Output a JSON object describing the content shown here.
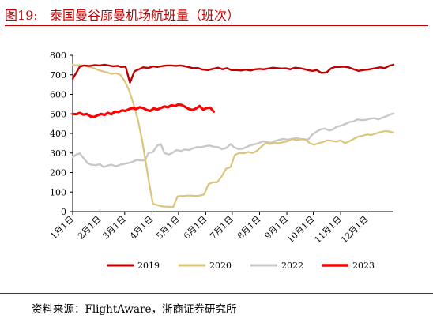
{
  "figure": {
    "label": "图19:",
    "title": "泰国曼谷廊曼机场航班量（班次）"
  },
  "source": "资料来源：FlightAware，浙商证券研究所",
  "colors": {
    "2019": "#c00000",
    "2020": "#dcc57a",
    "2022": "#c8c8c8",
    "2023": "#ff0000",
    "title": "#c00000"
  },
  "chart_data": {
    "type": "line",
    "title": "泰国曼谷廊曼机场航班量（班次）",
    "xlabel": "",
    "ylabel": "",
    "ylim": [
      0,
      800
    ],
    "yticks": [
      0,
      100,
      200,
      300,
      400,
      500,
      600,
      700,
      800
    ],
    "xlim": [
      1,
      365
    ],
    "x_unit": "day of year",
    "month_ticks": [
      {
        "label": "1月1日",
        "day": 1
      },
      {
        "label": "2月1日",
        "day": 32
      },
      {
        "label": "3月1日",
        "day": 60
      },
      {
        "label": "4月1日",
        "day": 91
      },
      {
        "label": "5月1日",
        "day": 121
      },
      {
        "label": "6月1日",
        "day": 152
      },
      {
        "label": "7月1日",
        "day": 182
      },
      {
        "label": "8月1日",
        "day": 213
      },
      {
        "label": "9月1日",
        "day": 244
      },
      {
        "label": "10月1日",
        "day": 274
      },
      {
        "label": "11月1日",
        "day": 305
      },
      {
        "label": "12月1日",
        "day": 335
      }
    ],
    "legend_position": "bottom",
    "series": [
      {
        "name": "2019",
        "x": [
          1,
          5,
          9,
          14,
          20,
          26,
          32,
          37,
          42,
          47,
          52,
          56,
          61,
          66,
          71,
          76,
          81,
          87,
          92,
          97,
          103,
          108,
          113,
          118,
          123,
          127,
          132,
          137,
          143,
          148,
          154,
          160,
          166,
          171,
          176,
          181,
          187,
          192,
          197,
          203,
          208,
          213,
          218,
          223,
          228,
          233,
          238,
          243,
          248,
          253,
          258,
          263,
          268,
          273,
          278,
          283,
          289,
          294,
          299,
          304,
          309,
          314,
          320,
          325,
          330,
          335,
          340,
          345,
          350,
          355,
          360,
          365
        ],
        "values": [
          680,
          710,
          742,
          748,
          745,
          750,
          748,
          752,
          748,
          744,
          746,
          740,
          742,
          660,
          718,
          728,
          738,
          735,
          743,
          740,
          745,
          748,
          748,
          746,
          748,
          745,
          740,
          734,
          735,
          727,
          724,
          730,
          736,
          728,
          734,
          724,
          724,
          722,
          726,
          722,
          728,
          730,
          728,
          732,
          736,
          734,
          732,
          733,
          728,
          736,
          734,
          730,
          724,
          720,
          724,
          710,
          712,
          732,
          740,
          740,
          742,
          738,
          728,
          720,
          724,
          726,
          730,
          734,
          738,
          734,
          746,
          752
        ]
      },
      {
        "name": "2020",
        "x": [
          1,
          5,
          10,
          15,
          20,
          25,
          30,
          35,
          40,
          45,
          50,
          55,
          60,
          65,
          70,
          75,
          80,
          84,
          88,
          92,
          95,
          98,
          101,
          105,
          110,
          115,
          120,
          123,
          127,
          131,
          135,
          140,
          145,
          150,
          155,
          160,
          165,
          170,
          175,
          180,
          185,
          190,
          195,
          200,
          205,
          210,
          215,
          220,
          225,
          230,
          235,
          240,
          245,
          250,
          255,
          260,
          265,
          270,
          275,
          280,
          285,
          290,
          295,
          300,
          305,
          310,
          315,
          320,
          325,
          330,
          335,
          340,
          345,
          350,
          355,
          360,
          365
        ],
        "values": [
          752,
          748,
          750,
          746,
          740,
          735,
          724,
          718,
          712,
          705,
          708,
          700,
          668,
          620,
          550,
          470,
          360,
          250,
          140,
          40,
          36,
          32,
          28,
          26,
          25,
          24,
          78,
          80,
          80,
          82,
          82,
          80,
          82,
          88,
          140,
          150,
          150,
          180,
          220,
          228,
          290,
          300,
          298,
          305,
          300,
          310,
          332,
          350,
          346,
          352,
          350,
          355,
          360,
          372,
          365,
          370,
          368,
          350,
          342,
          350,
          356,
          365,
          362,
          358,
          365,
          350,
          360,
          372,
          384,
          388,
          395,
          392,
          400,
          406,
          412,
          410,
          405
        ]
      },
      {
        "name": "2022",
        "x": [
          1,
          5,
          9,
          14,
          18,
          22,
          27,
          32,
          36,
          41,
          45,
          50,
          55,
          60,
          64,
          69,
          74,
          78,
          83,
          87,
          92,
          97,
          101,
          105,
          110,
          114,
          119,
          124,
          128,
          133,
          138,
          142,
          147,
          152,
          156,
          161,
          166,
          170,
          175,
          180,
          184,
          189,
          194,
          198,
          203,
          208,
          212,
          217,
          222,
          226,
          231,
          236,
          240,
          245,
          250,
          254,
          259,
          264,
          268,
          273,
          278,
          282,
          287,
          292,
          296,
          301,
          306,
          310,
          315,
          320,
          324,
          329,
          334,
          338,
          343,
          348,
          352,
          357,
          362,
          365
        ],
        "values": [
          278,
          292,
          298,
          270,
          248,
          240,
          238,
          242,
          228,
          236,
          240,
          232,
          240,
          245,
          248,
          255,
          265,
          262,
          262,
          300,
          305,
          338,
          345,
          300,
          292,
          300,
          315,
          310,
          318,
          315,
          325,
          330,
          330,
          335,
          338,
          332,
          330,
          320,
          325,
          345,
          330,
          320,
          322,
          330,
          340,
          345,
          350,
          360,
          355,
          352,
          362,
          368,
          372,
          368,
          372,
          376,
          372,
          370,
          368,
          395,
          410,
          420,
          425,
          415,
          420,
          435,
          440,
          448,
          458,
          462,
          472,
          468,
          470,
          475,
          478,
          472,
          480,
          488,
          498,
          502
        ]
      },
      {
        "name": "2023",
        "x": [
          1,
          5,
          9,
          13,
          17,
          21,
          25,
          29,
          33,
          37,
          41,
          45,
          49,
          53,
          57,
          61,
          65,
          69,
          73,
          77,
          81,
          85,
          89,
          93,
          97,
          101,
          105,
          109,
          113,
          117,
          121,
          125,
          129,
          133,
          137,
          141,
          145,
          149,
          153,
          157,
          161
        ],
        "values": [
          500,
          498,
          505,
          496,
          500,
          488,
          484,
          492,
          500,
          495,
          505,
          498,
          512,
          510,
          518,
          515,
          525,
          530,
          525,
          534,
          530,
          520,
          515,
          528,
          522,
          530,
          538,
          534,
          544,
          540,
          548,
          545,
          535,
          525,
          520,
          528,
          540,
          522,
          530,
          532,
          512
        ]
      }
    ]
  }
}
